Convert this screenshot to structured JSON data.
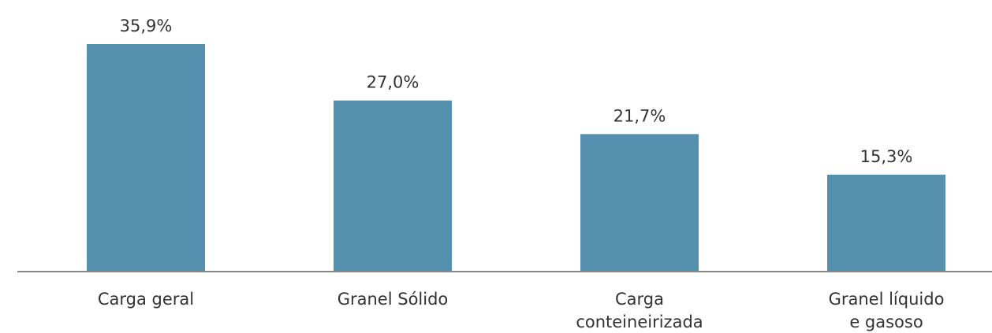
{
  "chart_data": {
    "type": "bar",
    "categories": [
      "Carga geral",
      "Granel Sólido",
      "Carga\nconteineirizada",
      "Granel líquido\ne gasoso"
    ],
    "values": [
      35.9,
      27.0,
      21.7,
      15.3
    ],
    "value_labels": [
      "35,9%",
      "27,0%",
      "21,7%",
      "15,3%"
    ],
    "color": "#5591ae"
  }
}
